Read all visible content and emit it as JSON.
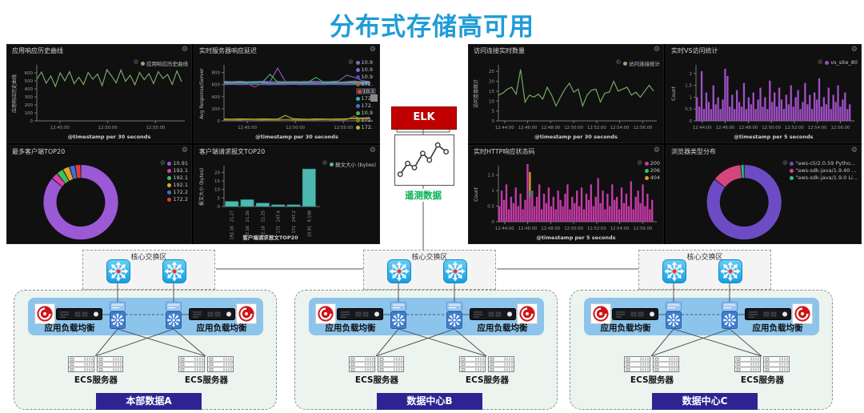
{
  "title": "分布式存储高可用",
  "icons": {
    "gear": "⚙",
    "legend_toggle": "◎"
  },
  "elk": {
    "label": "ELK",
    "telemetry_label": "遥测数据",
    "accent_red": "#C00000",
    "telemetry_green": "#00B050"
  },
  "datacenters": [
    {
      "core_label": "核心交换区",
      "lb_left": "应用负载均衡",
      "lb_right": "应用负载均衡",
      "ecs_left": "ECS服务器",
      "ecs_right": "ECS服务器",
      "badge": "本部数据A"
    },
    {
      "core_label": "核心交换区",
      "lb_left": "应用负载均衡",
      "lb_right": "应用负载均衡",
      "ecs_left": "ECS服务器",
      "ecs_right": "ECS服务器",
      "badge": "数据中心B"
    },
    {
      "core_label": "核心交换区",
      "lb_left": "应用负载均衡",
      "lb_right": "应用负载均衡",
      "ecs_left": "ECS服务器",
      "ecs_right": "ECS服务器",
      "badge": "数据中心C"
    }
  ],
  "chart_data": [
    {
      "type": "line",
      "title": "应用响应历史曲线",
      "ylabel": "应用响应历史曲线",
      "xlabel": "@timestamp per 30 seconds",
      "xticks": [
        "12:45:00",
        "12:50:00",
        "12:55:00"
      ],
      "xtick_span": [
        0.16,
        0.82
      ],
      "ylim": [
        0,
        680
      ],
      "yticks": [
        0,
        100,
        200,
        300,
        400,
        500,
        600
      ],
      "legend_toggle": true,
      "series": [
        {
          "name": "应用响应历史曲线",
          "color": "#7EB26D",
          "values": [
            520,
            610,
            470,
            560,
            430,
            600,
            500,
            615,
            465,
            545,
            455,
            605,
            520,
            585,
            440,
            640,
            560,
            475,
            635,
            495,
            570,
            450,
            605,
            515,
            590,
            465,
            615,
            530,
            580,
            455,
            625,
            490
          ]
        }
      ]
    },
    {
      "type": "line",
      "title": "实时服务器响应延迟",
      "ylabel": "Avg Response/Server",
      "xlabel": "@timestamp per 30 seconds",
      "xticks": [
        "12:45:00",
        "12:50:00",
        "12:55:00"
      ],
      "xtick_span": [
        0.16,
        0.82
      ],
      "ylim": [
        0,
        900
      ],
      "yticks": [
        0,
        200,
        400,
        600,
        800
      ],
      "legend_toggle": true,
      "legend_scrollbar": true,
      "series": [
        {
          "name": "10.9",
          "color": "#9560c0",
          "values": [
            650,
            640,
            655,
            645,
            650,
            640,
            648,
            870,
            650,
            642,
            648,
            640,
            652,
            645,
            650,
            640,
            648,
            660,
            645,
            650
          ]
        },
        {
          "name": "10.9",
          "color": "#7a68da",
          "values": [
            655,
            648,
            652,
            645,
            650,
            655,
            648,
            652,
            645,
            650,
            648,
            652,
            655,
            648,
            650,
            660,
            755,
            720,
            665,
            652
          ]
        },
        {
          "name": "10.9",
          "color": "#5a48c2",
          "values": [
            612,
            608,
            615,
            610,
            612,
            608,
            610,
            615,
            610,
            612,
            608,
            610,
            615,
            610,
            612,
            608,
            610,
            612,
            615,
            610
          ]
        },
        {
          "name": "172.",
          "color": "#a8642e",
          "values": [
            15,
            18,
            12,
            20,
            16,
            14,
            18,
            15,
            20,
            16,
            12,
            18,
            15,
            20,
            16,
            14,
            18,
            80,
            25,
            30
          ]
        },
        {
          "name": "10.1",
          "color": "#e04040",
          "selected": true,
          "values": [
            620,
            615,
            625,
            618,
            560,
            622,
            618,
            615,
            620,
            625,
            618,
            622,
            615,
            620,
            618,
            622,
            625,
            618,
            615,
            620
          ]
        },
        {
          "name": "172.",
          "color": "#2ab5c8",
          "values": [
            630,
            628,
            632,
            630,
            628,
            632,
            630,
            628,
            630,
            632,
            628,
            630,
            632,
            628,
            630,
            628,
            632,
            630,
            628,
            630
          ]
        },
        {
          "name": "172.",
          "color": "#4a70d8",
          "values": [
            600,
            605,
            598,
            602,
            605,
            600,
            598,
            602,
            600,
            605,
            598,
            600,
            602,
            598,
            605,
            600,
            598,
            602,
            600,
            598
          ]
        },
        {
          "name": "10.9",
          "color": "#3dbb56",
          "values": [
            640,
            635,
            645,
            638,
            642,
            635,
            770,
            640,
            638,
            642,
            635,
            640,
            720,
            638,
            642,
            635,
            640,
            645,
            638,
            640
          ]
        },
        {
          "name": "172.",
          "color": "#7a7d2a",
          "values": [
            25,
            22,
            28,
            24,
            26,
            22,
            25,
            28,
            24,
            26,
            22,
            25,
            28,
            24,
            26,
            30,
            35,
            32,
            28,
            60
          ]
        },
        {
          "name": "172.",
          "color": "#b8b832",
          "values": [
            30,
            28,
            32,
            30,
            28,
            32,
            30,
            28,
            90,
            35,
            30,
            28,
            32,
            30,
            28,
            32,
            30,
            45,
            45,
            50
          ]
        }
      ]
    },
    {
      "type": "donut",
      "title": "最多客户端TOP20",
      "legend_toggle": true,
      "slices": [
        {
          "label": "10.91",
          "value": 86,
          "color": "#9b59d6"
        },
        {
          "label": "192.1",
          "value": 3,
          "color": "#d63fa6"
        },
        {
          "label": "192.1",
          "value": 3,
          "color": "#3bc25a"
        },
        {
          "label": "192.1",
          "value": 3,
          "color": "#e0a62a"
        },
        {
          "label": "172.2",
          "value": 2.5,
          "color": "#3f6fd6"
        },
        {
          "label": "172.2",
          "value": 2.5,
          "color": "#e03c3c"
        }
      ]
    },
    {
      "type": "bar",
      "title": "客户端请求报文TOP20",
      "ylabel": "报文大小 (bytes)",
      "xlabel": "客户端请求报文TOP20",
      "ylim": [
        0,
        23
      ],
      "yticks": [
        0,
        5,
        10,
        15,
        20
      ],
      "color": "#4db8b0",
      "legend_toggle": true,
      "legend": [
        {
          "label": "报文大小 (bytes)",
          "color": "#4db8b0"
        }
      ],
      "categories": [
        [
          "21.27",
          "192.16"
        ],
        [
          "21.26",
          "192.16"
        ],
        [
          "21.25",
          "192.16"
        ],
        [
          "247.4",
          "172"
        ],
        [
          "247.2",
          "172"
        ],
        [
          "9.108",
          "10.91"
        ]
      ],
      "values": [
        3,
        4,
        2,
        1,
        1,
        22
      ]
    },
    {
      "type": "line",
      "title": "访问连接实时数量",
      "ylabel": "访问连接统计",
      "xlabel": "@timestamp per 30 seconds",
      "xticks": [
        "12:44:00",
        "12:46:00",
        "12:48:00",
        "12:50:00",
        "12:52:00",
        "12:54:00",
        "12:56:00"
      ],
      "xtick_span": [
        0.04,
        0.93
      ],
      "ylim": [
        0,
        27.5
      ],
      "yticks": [
        0,
        5,
        10,
        15,
        20,
        25
      ],
      "legend_toggle": true,
      "series": [
        {
          "name": "访问连接统计",
          "color": "#7EB26D",
          "values": [
            13,
            14,
            16,
            17,
            13.5,
            26,
            9.5,
            13,
            12,
            13.5,
            11,
            17,
            13,
            7.5,
            12,
            16,
            19,
            14.5,
            16,
            7.5,
            13,
            15.5,
            16,
            9.5,
            14,
            14.5,
            20,
            15,
            16,
            17,
            13,
            14.5,
            12,
            15,
            18,
            15
          ]
        }
      ]
    },
    {
      "type": "hist",
      "title": "实时VS访问统计",
      "ylabel": "Count",
      "xlabel": "@timestamp per 5 seconds",
      "xticks": [
        "12:44:00",
        "12:46:00",
        "12:48:00",
        "12:50:00",
        "12:52:00",
        "12:54:00",
        "12:56:00"
      ],
      "xtick_span": [
        0.04,
        0.93
      ],
      "ylim": [
        0,
        2.3
      ],
      "yticks": [
        0,
        0.5,
        1,
        1.5,
        2
      ],
      "color": "#9e4fc4",
      "legend_toggle": true,
      "legend": [
        {
          "label": "vs_site_80",
          "color": "#9e4fc4"
        }
      ],
      "values": [
        1,
        0.6,
        2.1,
        0.5,
        1.2,
        0.8,
        0.5,
        1.5,
        0.7,
        1,
        0.5,
        0.9,
        2.2,
        1.9,
        0.6,
        1.1,
        0.5,
        1.3,
        0.8,
        0.6,
        1.6,
        0.5,
        1,
        0.7,
        1.2,
        0.5,
        0.9,
        1.4,
        0.6,
        1,
        0.5,
        1.7,
        0.8,
        1.2,
        0.6,
        1.4,
        0.9,
        0.5,
        1.1,
        0.7,
        1.5,
        0.6,
        1,
        1.3,
        0.5,
        0.8,
        1.6,
        0.7,
        1.1,
        0.5,
        1.2,
        0.9,
        1.8,
        0.6,
        1,
        0.7,
        1.4,
        0.5,
        1.1,
        0.8,
        1.5,
        0.6,
        0.9,
        1.2,
        0.5,
        0.7
      ]
    },
    {
      "type": "hist",
      "title": "实时HTTP响应状态码",
      "ylabel": "Count",
      "xlabel": "@timestamp per 5 seconds",
      "xticks": [
        "12:44:00",
        "12:46:00",
        "12:48:00",
        "12:50:00",
        "12:52:00",
        "12:54:00",
        "12:56:00"
      ],
      "xtick_span": [
        0.04,
        0.93
      ],
      "ylim": [
        0,
        1.75
      ],
      "yticks": [
        0,
        0.5,
        1,
        1.5
      ],
      "color": "#c53ba7",
      "legend_toggle": true,
      "legend": [
        {
          "label": "200",
          "color": "#c53ba7"
        },
        {
          "label": "206",
          "color": "#3bbf5c"
        },
        {
          "label": "404",
          "color": "#e09c26"
        }
      ],
      "stacked": {
        "index": 13,
        "segments": [
          {
            "color": "#c53ba7",
            "value": 0.8
          },
          {
            "color": "#3bbf5c",
            "value": 0.2
          },
          {
            "color": "#e09c26",
            "value": 0.6
          }
        ]
      },
      "values": [
        0.5,
        1,
        0.7,
        1.2,
        0.4,
        0.8,
        0.6,
        1.1,
        0.5,
        0.9,
        0.4,
        0.7,
        1.85,
        0.8,
        1,
        0.5,
        0.8,
        1.2,
        0.4,
        0.9,
        0.6,
        1.1,
        0.5,
        0.8,
        0.4,
        1,
        0.7,
        0.5,
        0.9,
        1.2,
        0.4,
        0.8,
        0.6,
        1,
        0.5,
        1.1,
        0.4,
        0.9,
        0.7,
        1.2,
        0.5,
        0.8,
        1.4,
        0.6,
        1,
        0.4,
        0.9,
        0.5,
        1.2,
        0.7,
        0.8,
        0.4,
        1.1,
        0.6,
        0.9,
        0.5,
        1.3,
        0.4,
        0.8,
        1,
        0.6,
        1.2,
        0.5,
        0.9,
        0.4,
        0.7
      ]
    },
    {
      "type": "donut",
      "title": "浏览器类型分布",
      "legend_toggle": true,
      "slices": [
        {
          "label": "\"aws-cli/2.0.59 Pytho...",
          "value": 85.5,
          "color": "#6d4bc4"
        },
        {
          "label": "\"aws-sdk-java/1.9.40 ...",
          "value": 13,
          "color": "#d5477c"
        },
        {
          "label": "\"aws-sdk-java/1.9.0 Li...",
          "value": 1.5,
          "color": "#26c281"
        }
      ]
    }
  ]
}
